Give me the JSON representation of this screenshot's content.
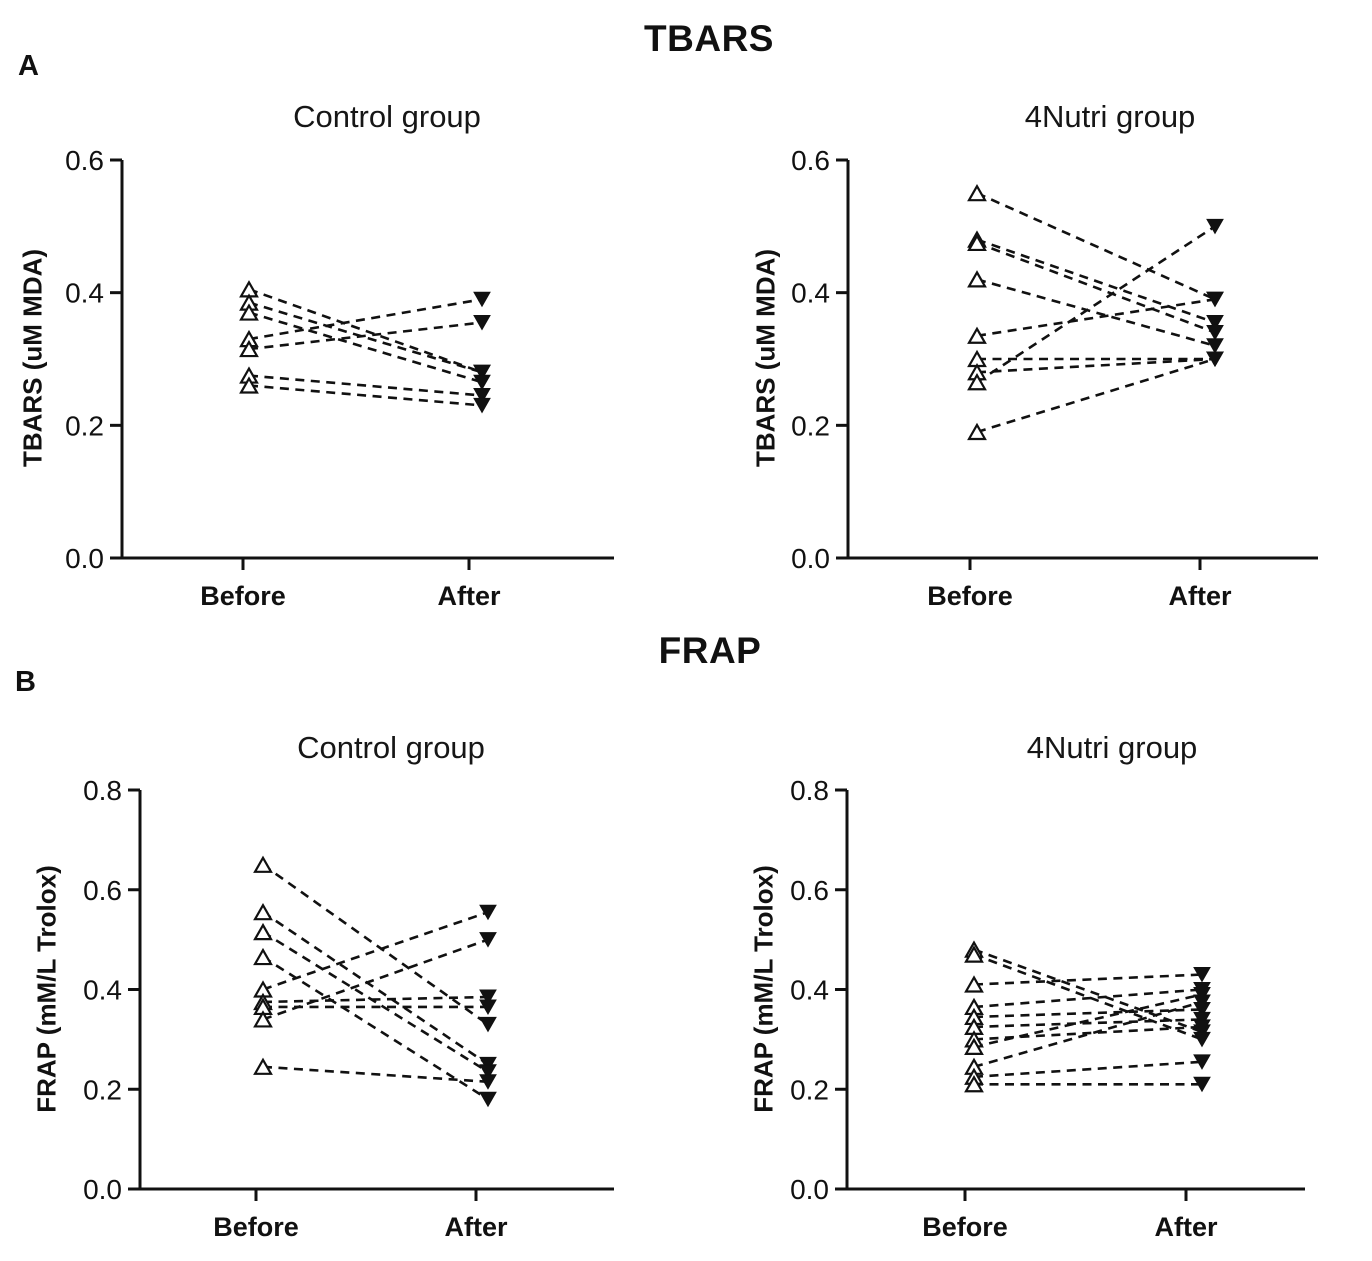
{
  "figure": {
    "background": "#ffffff",
    "ink_color": "#111111",
    "title_top": "TBARS",
    "title_bottom": "FRAP",
    "panel_label_a": "A",
    "panel_label_b": "B"
  },
  "chart_data": [
    {
      "type": "line",
      "subtype": "paired-before-after-slope",
      "panel": "A",
      "title": "Control group",
      "ylabel": "TBARS (uM MDA)",
      "categories": [
        "Before",
        "After"
      ],
      "ylim": [
        0.0,
        0.6
      ],
      "yticks": [
        0.0,
        0.2,
        0.4,
        0.6
      ],
      "grid": "off",
      "legend": "none",
      "line_style": "dashed",
      "marker_before": "open-triangle-up",
      "marker_after": "filled-triangle-down",
      "series": [
        {
          "name": "pair-1",
          "values": [
            0.405,
            0.28
          ]
        },
        {
          "name": "pair-2",
          "values": [
            0.385,
            0.28
          ]
        },
        {
          "name": "pair-3",
          "values": [
            0.37,
            0.265
          ]
        },
        {
          "name": "pair-4",
          "values": [
            0.33,
            0.39
          ]
        },
        {
          "name": "pair-5",
          "values": [
            0.315,
            0.355
          ]
        },
        {
          "name": "pair-6",
          "values": [
            0.275,
            0.245
          ]
        },
        {
          "name": "pair-7",
          "values": [
            0.26,
            0.23
          ]
        }
      ]
    },
    {
      "type": "line",
      "subtype": "paired-before-after-slope",
      "panel": "A",
      "title": "4Nutri group",
      "ylabel": "TBARS (uM MDA)",
      "categories": [
        "Before",
        "After"
      ],
      "ylim": [
        0.0,
        0.6
      ],
      "yticks": [
        0.0,
        0.2,
        0.4,
        0.6
      ],
      "grid": "off",
      "legend": "none",
      "line_style": "dashed",
      "marker_before": "open-triangle-up",
      "marker_after": "filled-triangle-down",
      "series": [
        {
          "name": "pair-1",
          "values": [
            0.55,
            0.39
          ]
        },
        {
          "name": "pair-2",
          "values": [
            0.48,
            0.355
          ]
        },
        {
          "name": "pair-3",
          "values": [
            0.475,
            0.34
          ]
        },
        {
          "name": "pair-4",
          "values": [
            0.42,
            0.32
          ]
        },
        {
          "name": "pair-5",
          "values": [
            0.335,
            0.39
          ]
        },
        {
          "name": "pair-6",
          "values": [
            0.3,
            0.3
          ]
        },
        {
          "name": "pair-7",
          "values": [
            0.28,
            0.3
          ]
        },
        {
          "name": "pair-8",
          "values": [
            0.265,
            0.5
          ]
        },
        {
          "name": "pair-9",
          "values": [
            0.19,
            0.3
          ]
        }
      ]
    },
    {
      "type": "line",
      "subtype": "paired-before-after-slope",
      "panel": "B",
      "title": "Control group",
      "ylabel": "FRAP (mM/L Trolox)",
      "categories": [
        "Before",
        "After"
      ],
      "ylim": [
        0.0,
        0.8
      ],
      "yticks": [
        0.0,
        0.2,
        0.4,
        0.6,
        0.8
      ],
      "grid": "off",
      "legend": "none",
      "line_style": "dashed",
      "marker_before": "open-triangle-up",
      "marker_after": "filled-triangle-down",
      "series": [
        {
          "name": "pair-1",
          "values": [
            0.65,
            0.33
          ]
        },
        {
          "name": "pair-2",
          "values": [
            0.555,
            0.25
          ]
        },
        {
          "name": "pair-3",
          "values": [
            0.515,
            0.235
          ]
        },
        {
          "name": "pair-4",
          "values": [
            0.465,
            0.18
          ]
        },
        {
          "name": "pair-5",
          "values": [
            0.4,
            0.555
          ]
        },
        {
          "name": "pair-6",
          "values": [
            0.375,
            0.385
          ]
        },
        {
          "name": "pair-7",
          "values": [
            0.365,
            0.365
          ]
        },
        {
          "name": "pair-8",
          "values": [
            0.34,
            0.5
          ]
        },
        {
          "name": "pair-9",
          "values": [
            0.245,
            0.215
          ]
        }
      ]
    },
    {
      "type": "line",
      "subtype": "paired-before-after-slope",
      "panel": "B",
      "title": "4Nutri group",
      "ylabel": "FRAP (mM/L Trolox)",
      "categories": [
        "Before",
        "After"
      ],
      "ylim": [
        0.0,
        0.8
      ],
      "yticks": [
        0.0,
        0.2,
        0.4,
        0.6,
        0.8
      ],
      "grid": "off",
      "legend": "none",
      "line_style": "dashed",
      "marker_before": "open-triangle-up",
      "marker_after": "filled-triangle-down",
      "series": [
        {
          "name": "pair-1",
          "values": [
            0.48,
            0.315
          ]
        },
        {
          "name": "pair-2",
          "values": [
            0.47,
            0.3
          ]
        },
        {
          "name": "pair-3",
          "values": [
            0.41,
            0.43
          ]
        },
        {
          "name": "pair-4",
          "values": [
            0.365,
            0.4
          ]
        },
        {
          "name": "pair-5",
          "values": [
            0.345,
            0.36
          ]
        },
        {
          "name": "pair-6",
          "values": [
            0.325,
            0.34
          ]
        },
        {
          "name": "pair-7",
          "values": [
            0.3,
            0.325
          ]
        },
        {
          "name": "pair-8",
          "values": [
            0.285,
            0.39
          ]
        },
        {
          "name": "pair-9",
          "values": [
            0.245,
            0.375
          ]
        },
        {
          "name": "pair-10",
          "values": [
            0.225,
            0.255
          ]
        },
        {
          "name": "pair-11",
          "values": [
            0.21,
            0.21
          ]
        }
      ]
    }
  ]
}
